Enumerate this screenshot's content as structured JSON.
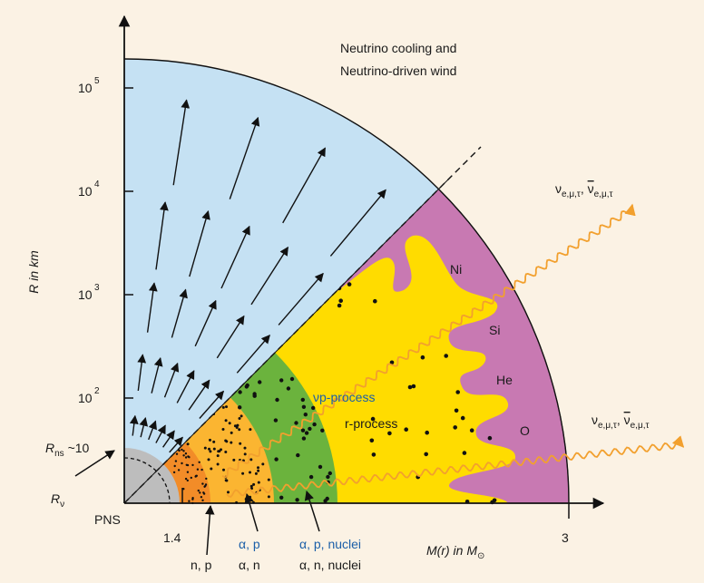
{
  "colors": {
    "background": "#fbf2e4",
    "wind_region": "#c5e1f3",
    "shell_outer": "#c879b2",
    "shell_yellow": "#ffdc00",
    "shell_green": "#6bb33d",
    "shell_lightorange": "#fbb531",
    "shell_orange": "#f28c28",
    "shell_red": "#e13b1c",
    "pns": "#bdbdbd",
    "neutrino": "#f2a02e",
    "label_blue": "#1b5fa8"
  },
  "top_note": {
    "line1": "Neutrino cooling and",
    "line2": "Neutrino-driven wind"
  },
  "y_axis": {
    "label": "R in km",
    "ticks": [
      {
        "base": "10",
        "exp": "5"
      },
      {
        "base": "10",
        "exp": "4"
      },
      {
        "base": "10",
        "exp": "3"
      },
      {
        "base": "10",
        "exp": "2"
      }
    ],
    "rns": {
      "main": "R",
      "sub": "ns",
      "tail": " ~10"
    }
  },
  "x_axis": {
    "label_prefix": "M(r) in M",
    "label_sub": "⊙",
    "tick_14": "1.4",
    "tick_3": "3"
  },
  "labels": {
    "pns": "PNS",
    "rnu_main": "R",
    "rnu_sub": "ν",
    "np": "n, p",
    "ap_blue": "α, p",
    "an": "α, n",
    "apn_blue": "α, p, nuclei",
    "ann": "α, n, nuclei",
    "vp_process": "νp-process",
    "r_process": "r-process"
  },
  "elements": {
    "ni": "Ni",
    "si": "Si",
    "he": "He",
    "o": "O"
  },
  "neutrino_label_upper": {
    "nu": "ν",
    "sub1": "e,μ,τ",
    "sep": ", ",
    "nubar": "ν",
    "sub2": "e,μ,τ"
  },
  "neutrino_label_lower": {
    "nu": "ν",
    "sub1": "e,μ,τ",
    "sep": ", ",
    "nubar": "ν",
    "sub2": "e,μ,τ"
  }
}
